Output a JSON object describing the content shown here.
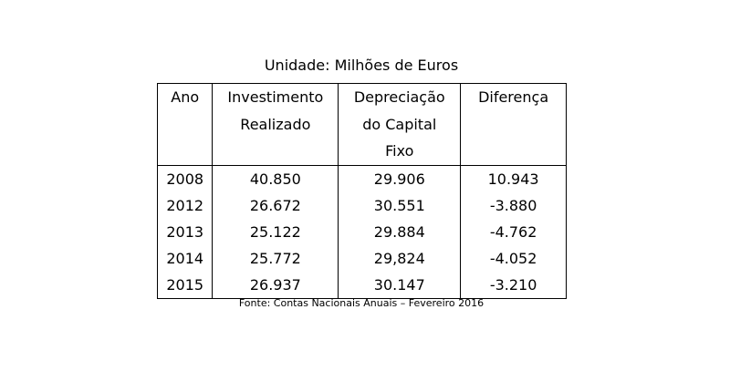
{
  "caption": "Unidade: Milhões de Euros",
  "table": {
    "headers": [
      [
        "Ano"
      ],
      [
        "Investimento",
        "Realizado"
      ],
      [
        "Depreciação",
        "do Capital",
        "Fixo"
      ],
      [
        "Diferença"
      ]
    ],
    "rows": [
      [
        "2008",
        "40.850",
        "29.906",
        "10.943"
      ],
      [
        "2012",
        "26.672",
        "30.551",
        "-3.880"
      ],
      [
        "2013",
        "25.122",
        "29.884",
        "-4.762"
      ],
      [
        "2014",
        "25.772",
        "29,824",
        "-4.052"
      ],
      [
        "2015",
        "26.937",
        "30.147",
        "-3.210"
      ]
    ]
  },
  "source": "Fonte: Contas Nacionais Anuais – Fevereiro 2016"
}
